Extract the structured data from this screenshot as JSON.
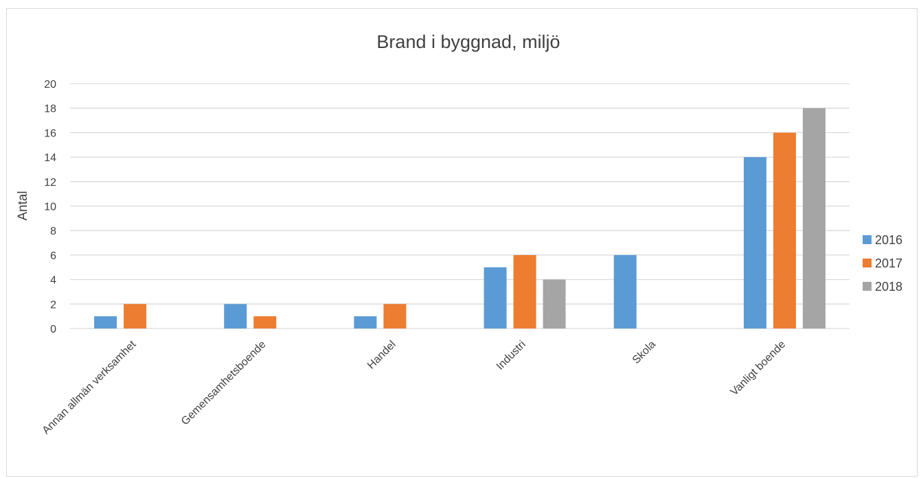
{
  "chart_data": {
    "type": "bar",
    "title": "Brand i byggnad, miljö",
    "ylabel": "Antal",
    "xlabel": "",
    "ylim": [
      0,
      20
    ],
    "ytick_step": 2,
    "grid": true,
    "legend_position": "right",
    "categories": [
      "Annan allmän verksamhet",
      "Gemensamhetsboende",
      "Handel",
      "Industri",
      "Skola",
      "Vanligt boende"
    ],
    "series": [
      {
        "name": "2016",
        "color": "#5b9bd5",
        "values": [
          1,
          2,
          1,
          5,
          6,
          14
        ]
      },
      {
        "name": "2017",
        "color": "#ed7d31",
        "values": [
          2,
          1,
          2,
          6,
          0,
          16
        ]
      },
      {
        "name": "2018",
        "color": "#a5a5a5",
        "values": [
          0,
          0,
          0,
          4,
          0,
          18
        ]
      }
    ]
  }
}
